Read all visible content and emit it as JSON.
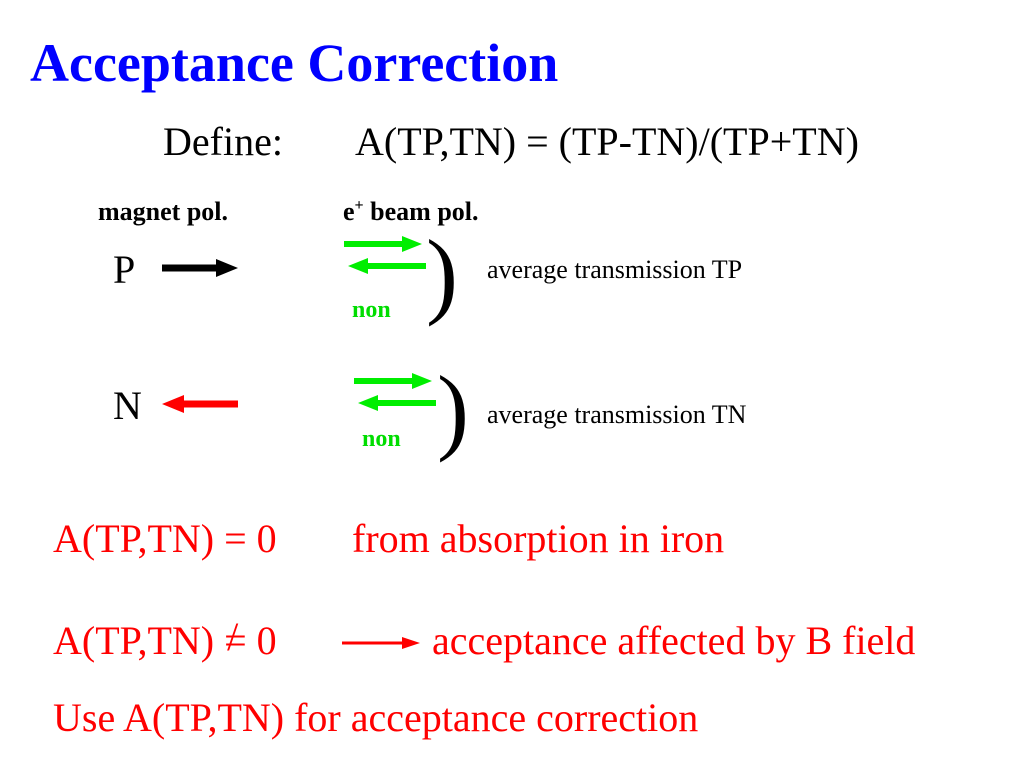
{
  "title": "Acceptance Correction",
  "define": {
    "label": "Define:",
    "formula": "A(TP,TN) = (TP-TN)/(TP+TN)"
  },
  "headers": {
    "magnet": "magnet pol.",
    "beam_prefix": "e",
    "beam_sup": "+",
    "beam_suffix": " beam pol."
  },
  "rows": [
    {
      "magnet_letter": "P",
      "magnet_arrow": "right",
      "magnet_color": "#000000",
      "beam_label": "non",
      "bracket": ")",
      "result": "average transmission TP"
    },
    {
      "magnet_letter": "N",
      "magnet_arrow": "left",
      "magnet_color": "#ff0000",
      "beam_label": "non",
      "bracket": ")",
      "result": "average transmission TN"
    }
  ],
  "statements": {
    "zero_formula": "A(TP,TN) = 0",
    "zero_desc": "from absorption in iron",
    "nonzero_left": "A(TP,TN) ",
    "nonzero_neq": "=/",
    "nonzero_right": " 0",
    "nonzero_desc": "acceptance affected by B field",
    "use": "Use A(TP,TN) for acceptance correction"
  },
  "colors": {
    "title": "#0000ff",
    "text": "#000000",
    "red": "#ff0000",
    "green": "#00ee00",
    "black_arrow": "#000000"
  }
}
